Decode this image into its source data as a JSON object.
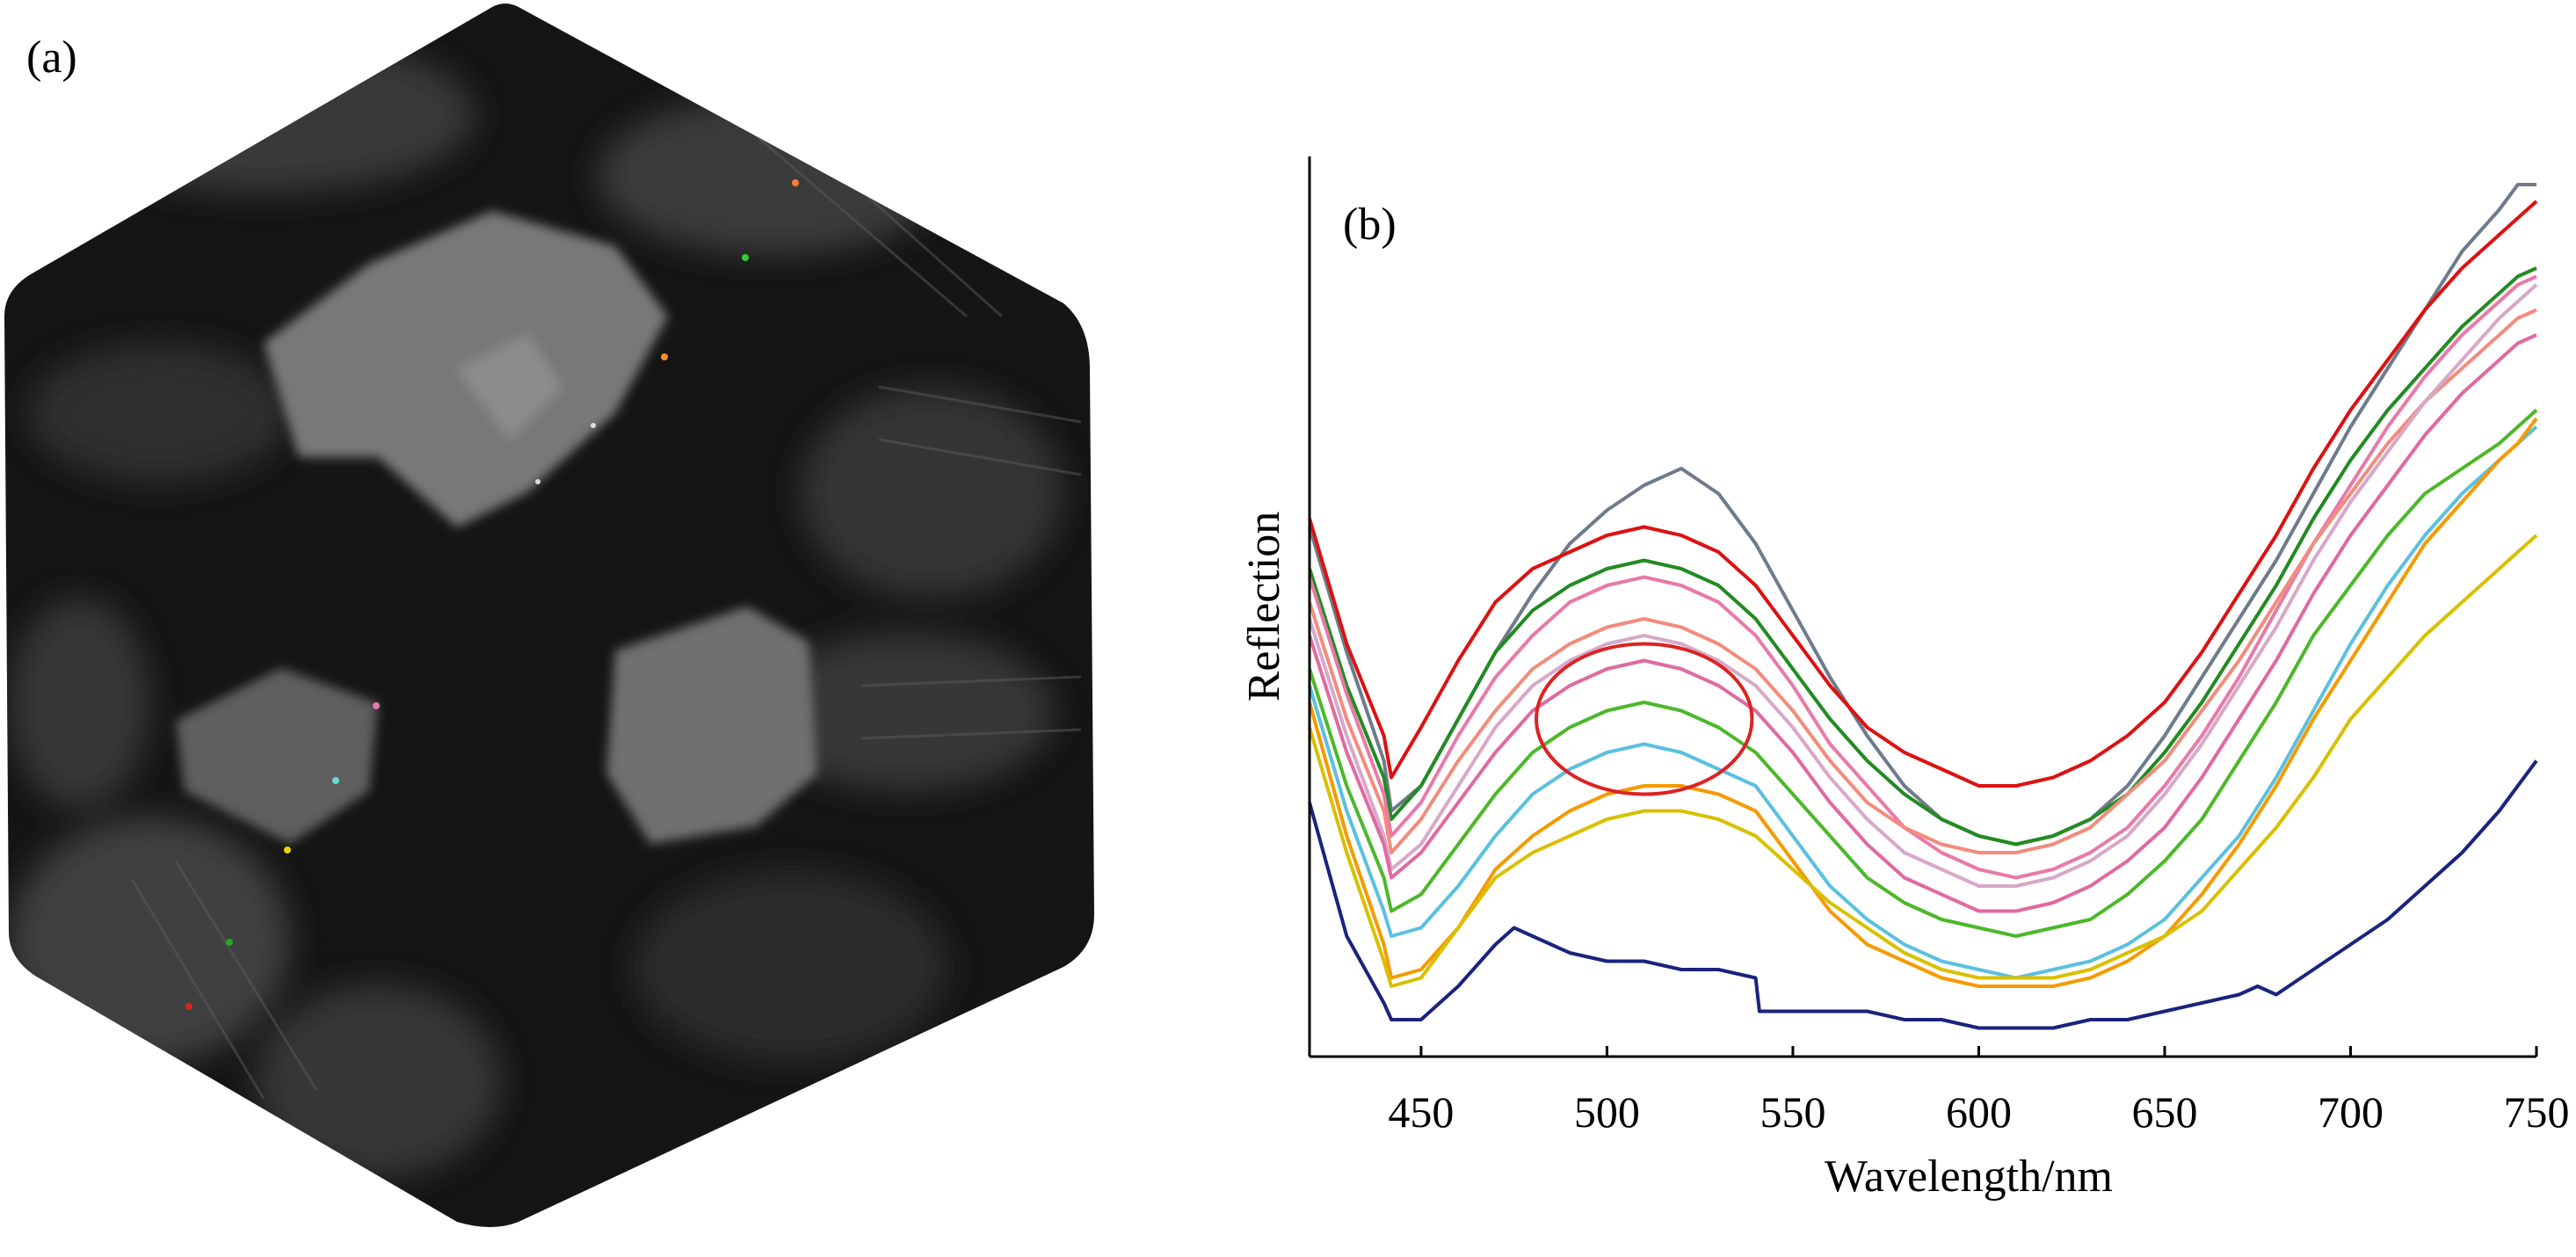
{
  "panels": {
    "a": {
      "label": "(a)"
    },
    "b": {
      "label": "(b)"
    }
  },
  "chart_data": {
    "type": "line",
    "title": "",
    "xlabel": "Wavelength/nm",
    "ylabel": "Reflection",
    "xlim": [
      420,
      750
    ],
    "ylim": [
      0,
      1
    ],
    "x_ticks": [
      450,
      500,
      550,
      600,
      650,
      700,
      750
    ],
    "y_ticks": [],
    "grid": false,
    "legend": "none",
    "annotations": [
      {
        "type": "ellipse",
        "color": "#dd2222",
        "cx": 510,
        "cy": 0.36,
        "rx": 29,
        "ry": 0.09
      }
    ],
    "series": [
      {
        "color": "#6e7b8b",
        "x": [
          420,
          430,
          440,
          442,
          450,
          460,
          470,
          480,
          490,
          500,
          510,
          520,
          530,
          540,
          550,
          560,
          570,
          580,
          590,
          600,
          610,
          620,
          630,
          640,
          650,
          660,
          670,
          680,
          690,
          700,
          710,
          720,
          730,
          740,
          745,
          750
        ],
        "y": [
          0.59,
          0.44,
          0.31,
          0.25,
          0.28,
          0.36,
          0.44,
          0.51,
          0.57,
          0.61,
          0.64,
          0.66,
          0.63,
          0.57,
          0.49,
          0.41,
          0.34,
          0.28,
          0.24,
          0.22,
          0.21,
          0.22,
          0.24,
          0.28,
          0.34,
          0.41,
          0.48,
          0.55,
          0.63,
          0.71,
          0.78,
          0.85,
          0.92,
          0.97,
          1.0,
          1.0
        ]
      },
      {
        "color": "#dd1111",
        "x": [
          420,
          430,
          440,
          442,
          450,
          460,
          470,
          480,
          490,
          500,
          510,
          520,
          530,
          540,
          550,
          560,
          570,
          580,
          590,
          600,
          610,
          620,
          630,
          640,
          650,
          660,
          670,
          680,
          690,
          700,
          710,
          720,
          730,
          740,
          745,
          750
        ],
        "y": [
          0.6,
          0.45,
          0.34,
          0.29,
          0.35,
          0.43,
          0.5,
          0.54,
          0.56,
          0.58,
          0.59,
          0.58,
          0.56,
          0.52,
          0.46,
          0.4,
          0.35,
          0.32,
          0.3,
          0.28,
          0.28,
          0.29,
          0.31,
          0.34,
          0.38,
          0.44,
          0.51,
          0.58,
          0.66,
          0.73,
          0.79,
          0.85,
          0.9,
          0.94,
          0.96,
          0.98
        ]
      },
      {
        "color": "#228b22",
        "x": [
          420,
          430,
          440,
          442,
          450,
          460,
          470,
          480,
          490,
          500,
          510,
          520,
          530,
          540,
          550,
          560,
          570,
          580,
          590,
          600,
          610,
          620,
          630,
          640,
          650,
          660,
          670,
          680,
          690,
          700,
          710,
          720,
          730,
          740,
          745,
          750
        ],
        "y": [
          0.54,
          0.4,
          0.29,
          0.24,
          0.28,
          0.36,
          0.44,
          0.49,
          0.52,
          0.54,
          0.55,
          0.54,
          0.52,
          0.48,
          0.42,
          0.36,
          0.31,
          0.27,
          0.24,
          0.22,
          0.21,
          0.22,
          0.24,
          0.27,
          0.32,
          0.38,
          0.45,
          0.52,
          0.6,
          0.67,
          0.73,
          0.78,
          0.83,
          0.87,
          0.89,
          0.9
        ]
      },
      {
        "color": "#e87aa8",
        "x": [
          420,
          430,
          440,
          442,
          450,
          460,
          470,
          480,
          490,
          500,
          510,
          520,
          530,
          540,
          550,
          560,
          570,
          580,
          590,
          600,
          610,
          620,
          630,
          640,
          650,
          660,
          670,
          680,
          690,
          700,
          710,
          720,
          730,
          740,
          745,
          750
        ],
        "y": [
          0.53,
          0.39,
          0.27,
          0.22,
          0.26,
          0.34,
          0.41,
          0.46,
          0.5,
          0.52,
          0.53,
          0.52,
          0.5,
          0.46,
          0.4,
          0.33,
          0.28,
          0.23,
          0.2,
          0.18,
          0.17,
          0.18,
          0.2,
          0.23,
          0.28,
          0.34,
          0.41,
          0.49,
          0.57,
          0.64,
          0.71,
          0.77,
          0.82,
          0.86,
          0.88,
          0.89
        ]
      },
      {
        "color": "#f28c7c",
        "x": [
          420,
          430,
          440,
          442,
          450,
          460,
          470,
          480,
          490,
          500,
          510,
          520,
          530,
          540,
          550,
          560,
          570,
          580,
          590,
          600,
          610,
          620,
          630,
          640,
          650,
          660,
          670,
          680,
          690,
          700,
          710,
          720,
          730,
          740,
          745,
          750
        ],
        "y": [
          0.5,
          0.36,
          0.25,
          0.2,
          0.24,
          0.31,
          0.37,
          0.42,
          0.45,
          0.47,
          0.48,
          0.47,
          0.45,
          0.42,
          0.37,
          0.31,
          0.26,
          0.23,
          0.21,
          0.2,
          0.2,
          0.21,
          0.23,
          0.27,
          0.31,
          0.37,
          0.43,
          0.5,
          0.57,
          0.63,
          0.69,
          0.74,
          0.78,
          0.82,
          0.84,
          0.85
        ]
      },
      {
        "color": "#d8a8c8",
        "x": [
          420,
          430,
          440,
          442,
          450,
          460,
          470,
          480,
          490,
          500,
          510,
          520,
          530,
          540,
          550,
          560,
          570,
          580,
          590,
          600,
          610,
          620,
          630,
          640,
          650,
          660,
          670,
          680,
          690,
          700,
          710,
          720,
          730,
          740,
          745,
          750
        ],
        "y": [
          0.48,
          0.34,
          0.22,
          0.18,
          0.21,
          0.28,
          0.35,
          0.4,
          0.43,
          0.45,
          0.46,
          0.45,
          0.43,
          0.4,
          0.35,
          0.29,
          0.24,
          0.2,
          0.18,
          0.16,
          0.16,
          0.17,
          0.19,
          0.22,
          0.27,
          0.33,
          0.4,
          0.47,
          0.55,
          0.62,
          0.68,
          0.74,
          0.79,
          0.84,
          0.86,
          0.88
        ]
      },
      {
        "color": "#e06aa0",
        "x": [
          420,
          430,
          440,
          442,
          450,
          460,
          470,
          480,
          490,
          500,
          510,
          520,
          530,
          540,
          550,
          560,
          570,
          580,
          590,
          600,
          610,
          620,
          630,
          640,
          650,
          660,
          670,
          680,
          690,
          700,
          710,
          720,
          730,
          740,
          745,
          750
        ],
        "y": [
          0.46,
          0.32,
          0.21,
          0.17,
          0.2,
          0.26,
          0.32,
          0.37,
          0.4,
          0.42,
          0.43,
          0.42,
          0.4,
          0.37,
          0.32,
          0.26,
          0.21,
          0.17,
          0.15,
          0.13,
          0.13,
          0.14,
          0.16,
          0.19,
          0.23,
          0.29,
          0.36,
          0.43,
          0.51,
          0.58,
          0.64,
          0.7,
          0.75,
          0.79,
          0.81,
          0.82
        ]
      },
      {
        "color": "#4cb82a",
        "x": [
          420,
          430,
          440,
          442,
          450,
          460,
          470,
          480,
          490,
          500,
          510,
          520,
          530,
          540,
          550,
          560,
          570,
          580,
          590,
          600,
          610,
          620,
          630,
          640,
          650,
          660,
          670,
          680,
          690,
          700,
          710,
          720,
          730,
          740,
          745,
          750
        ],
        "y": [
          0.42,
          0.28,
          0.17,
          0.13,
          0.15,
          0.21,
          0.27,
          0.32,
          0.35,
          0.37,
          0.38,
          0.37,
          0.35,
          0.32,
          0.27,
          0.22,
          0.17,
          0.14,
          0.12,
          0.11,
          0.1,
          0.11,
          0.12,
          0.15,
          0.19,
          0.24,
          0.31,
          0.38,
          0.46,
          0.52,
          0.58,
          0.63,
          0.66,
          0.69,
          0.71,
          0.73
        ]
      },
      {
        "color": "#5bc0e0",
        "x": [
          420,
          430,
          440,
          442,
          450,
          460,
          470,
          480,
          490,
          500,
          510,
          520,
          530,
          540,
          550,
          560,
          570,
          580,
          590,
          600,
          610,
          620,
          630,
          640,
          650,
          660,
          670,
          680,
          690,
          700,
          710,
          720,
          730,
          740,
          745,
          750
        ],
        "y": [
          0.4,
          0.25,
          0.13,
          0.1,
          0.11,
          0.16,
          0.22,
          0.27,
          0.3,
          0.32,
          0.33,
          0.32,
          0.3,
          0.28,
          0.22,
          0.16,
          0.12,
          0.09,
          0.07,
          0.06,
          0.05,
          0.06,
          0.07,
          0.09,
          0.12,
          0.17,
          0.22,
          0.29,
          0.37,
          0.45,
          0.52,
          0.58,
          0.63,
          0.67,
          0.69,
          0.71
        ]
      },
      {
        "color": "#f59a00",
        "x": [
          420,
          430,
          440,
          442,
          450,
          460,
          470,
          480,
          490,
          500,
          510,
          520,
          530,
          540,
          550,
          560,
          570,
          580,
          590,
          600,
          610,
          620,
          630,
          640,
          650,
          660,
          670,
          680,
          690,
          700,
          710,
          720,
          730,
          740,
          745,
          750
        ],
        "y": [
          0.38,
          0.22,
          0.09,
          0.05,
          0.06,
          0.11,
          0.18,
          0.22,
          0.25,
          0.27,
          0.28,
          0.28,
          0.27,
          0.25,
          0.19,
          0.13,
          0.09,
          0.07,
          0.05,
          0.04,
          0.04,
          0.04,
          0.05,
          0.07,
          0.1,
          0.15,
          0.21,
          0.28,
          0.36,
          0.43,
          0.5,
          0.57,
          0.62,
          0.67,
          0.69,
          0.72
        ]
      },
      {
        "color": "#d8c000",
        "x": [
          420,
          430,
          440,
          442,
          450,
          460,
          470,
          480,
          490,
          500,
          510,
          520,
          530,
          540,
          550,
          560,
          570,
          580,
          590,
          600,
          610,
          620,
          630,
          640,
          650,
          660,
          670,
          680,
          690,
          700,
          710,
          720,
          730,
          740,
          745,
          750
        ],
        "y": [
          0.35,
          0.2,
          0.07,
          0.04,
          0.05,
          0.11,
          0.17,
          0.2,
          0.22,
          0.24,
          0.25,
          0.25,
          0.24,
          0.22,
          0.18,
          0.14,
          0.11,
          0.08,
          0.06,
          0.05,
          0.05,
          0.05,
          0.06,
          0.08,
          0.1,
          0.13,
          0.18,
          0.23,
          0.29,
          0.36,
          0.41,
          0.46,
          0.5,
          0.54,
          0.56,
          0.58
        ]
      },
      {
        "color": "#1a237e",
        "x": [
          420,
          430,
          440,
          442,
          450,
          460,
          470,
          475,
          480,
          490,
          500,
          510,
          520,
          530,
          540,
          541,
          550,
          560,
          570,
          580,
          590,
          600,
          610,
          620,
          630,
          640,
          650,
          660,
          670,
          675,
          680,
          690,
          700,
          710,
          720,
          730,
          740,
          745,
          750
        ],
        "y": [
          0.26,
          0.1,
          0.02,
          0.0,
          0.0,
          0.04,
          0.09,
          0.11,
          0.1,
          0.08,
          0.07,
          0.07,
          0.06,
          0.06,
          0.05,
          0.01,
          0.01,
          0.01,
          0.01,
          0.0,
          0.0,
          -0.01,
          -0.01,
          -0.01,
          0.0,
          0.0,
          0.01,
          0.02,
          0.03,
          0.04,
          0.03,
          0.06,
          0.09,
          0.12,
          0.16,
          0.2,
          0.25,
          0.28,
          0.31
        ]
      }
    ]
  }
}
